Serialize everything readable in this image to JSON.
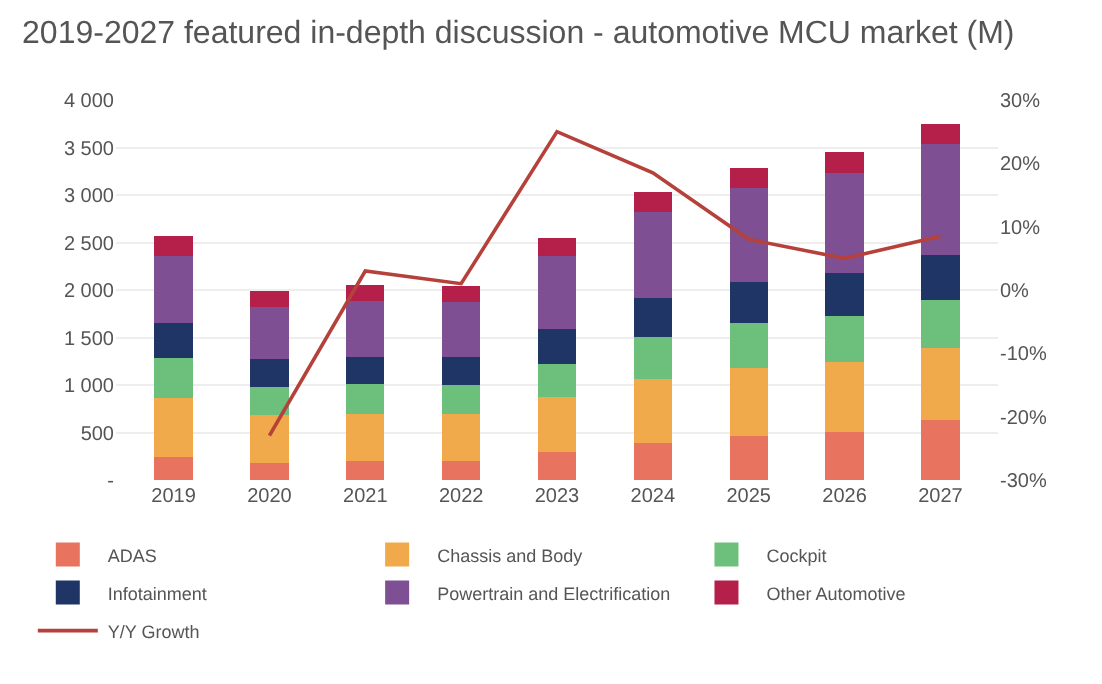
{
  "chart_data": {
    "type": "bar",
    "stacked": true,
    "title": "2019-2027 featured in-depth discussion - automotive MCU market (M)",
    "categories": [
      "2019",
      "2020",
      "2021",
      "2022",
      "2023",
      "2024",
      "2025",
      "2026",
      "2027"
    ],
    "series": [
      {
        "name": "ADAS",
        "color": "#e8735f",
        "values": [
          240,
          180,
          200,
          200,
          290,
          390,
          460,
          510,
          630
        ]
      },
      {
        "name": "Chassis and Body",
        "color": "#f0a94b",
        "values": [
          620,
          500,
          500,
          500,
          580,
          670,
          720,
          730,
          760
        ]
      },
      {
        "name": "Cockpit",
        "color": "#6cc07c",
        "values": [
          420,
          300,
          310,
          300,
          350,
          450,
          470,
          490,
          510
        ]
      },
      {
        "name": "Infotainment",
        "color": "#1f3566",
        "values": [
          370,
          290,
          290,
          290,
          370,
          410,
          430,
          450,
          470
        ]
      },
      {
        "name": "Powertrain and Electrification",
        "color": "#7f4f93",
        "values": [
          710,
          550,
          580,
          580,
          770,
          900,
          990,
          1050,
          1170
        ]
      },
      {
        "name": "Other Automotive",
        "color": "#b5204b",
        "values": [
          210,
          170,
          170,
          170,
          190,
          210,
          210,
          220,
          210
        ]
      },
      {
        "name": "Y/Y Growth",
        "type": "line",
        "axis": "y2",
        "color": "#b5413a",
        "values": [
          null,
          -23,
          3,
          1,
          25,
          18.5,
          8,
          5,
          8.5
        ]
      }
    ],
    "ylim": [
      0,
      4000
    ],
    "yticks": [
      {
        "value": 0,
        "label": "-"
      },
      500,
      {
        "value": 1000,
        "label": "1 000"
      },
      {
        "value": 1500,
        "label": "1 500"
      },
      {
        "value": 2000,
        "label": "2 000"
      },
      {
        "value": 2500,
        "label": "2 500"
      },
      {
        "value": 3000,
        "label": "3 000"
      },
      {
        "value": 3500,
        "label": "3 500"
      },
      {
        "value": 4000,
        "label": "4 000"
      }
    ],
    "y2lim": [
      -30,
      30
    ],
    "y2ticks": [
      {
        "value": -30,
        "label": "-30%"
      },
      {
        "value": -20,
        "label": "-20%"
      },
      {
        "value": -10,
        "label": "-10%"
      },
      {
        "value": 0,
        "label": "0%"
      },
      {
        "value": 10,
        "label": "10%"
      },
      {
        "value": 20,
        "label": "20%"
      },
      {
        "value": 30,
        "label": "30%"
      }
    ],
    "grid": "y",
    "legend": "bottom",
    "marker": "none",
    "line_style": "solid"
  }
}
